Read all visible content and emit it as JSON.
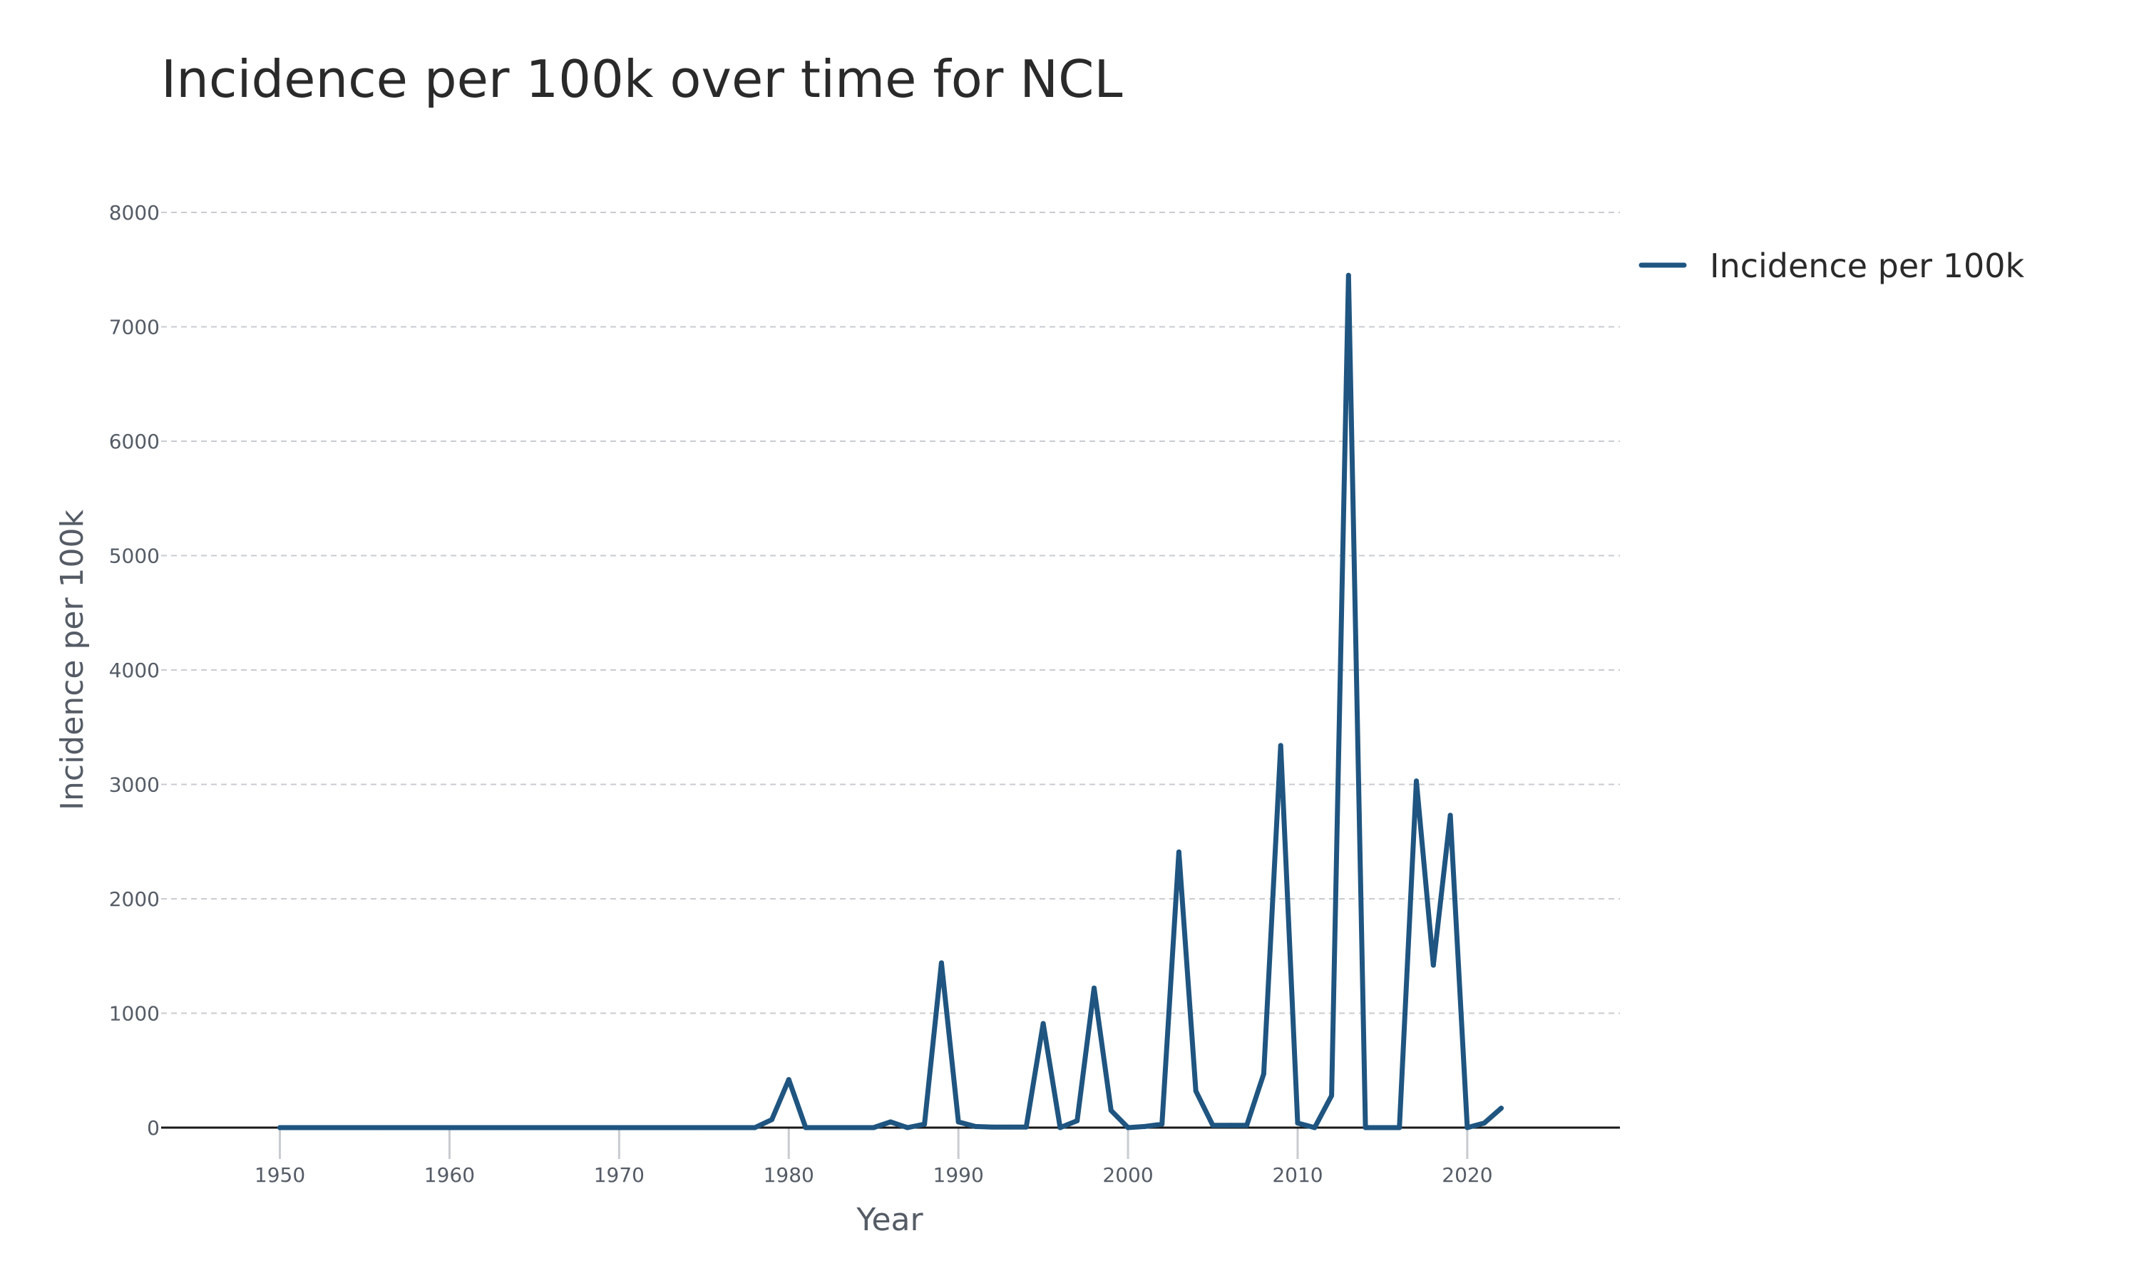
{
  "chart_data": {
    "type": "line",
    "title": "Incidence per 100k over time for NCL",
    "xlabel": "Year",
    "ylabel": "Incidence per 100k",
    "xlim": [
      1943,
      2029
    ],
    "ylim": [
      0,
      8000
    ],
    "x_ticks": [
      1950,
      1960,
      1970,
      1980,
      1990,
      2000,
      2010,
      2020
    ],
    "y_ticks": [
      0,
      1000,
      2000,
      3000,
      4000,
      5000,
      6000,
      7000,
      8000
    ],
    "grid": "horizontal dashed",
    "legend_position": "top-right outside",
    "series": [
      {
        "name": "Incidence per 100k",
        "color": "#1f5580",
        "x": [
          1950,
          1951,
          1952,
          1953,
          1954,
          1955,
          1956,
          1957,
          1958,
          1959,
          1960,
          1961,
          1962,
          1963,
          1964,
          1965,
          1966,
          1967,
          1968,
          1969,
          1970,
          1971,
          1972,
          1973,
          1974,
          1975,
          1976,
          1977,
          1978,
          1979,
          1980,
          1981,
          1982,
          1983,
          1984,
          1985,
          1986,
          1987,
          1988,
          1989,
          1990,
          1991,
          1992,
          1993,
          1994,
          1995,
          1996,
          1997,
          1998,
          1999,
          2000,
          2001,
          2002,
          2003,
          2004,
          2005,
          2006,
          2007,
          2008,
          2009,
          2010,
          2011,
          2012,
          2013,
          2014,
          2015,
          2016,
          2017,
          2018,
          2019,
          2020,
          2021,
          2022
        ],
        "y": [
          0,
          0,
          0,
          0,
          0,
          0,
          0,
          0,
          0,
          0,
          0,
          0,
          0,
          0,
          0,
          0,
          0,
          0,
          0,
          0,
          0,
          0,
          0,
          0,
          0,
          0,
          0,
          0,
          0,
          70,
          420,
          0,
          0,
          0,
          0,
          0,
          50,
          0,
          30,
          1440,
          50,
          10,
          5,
          5,
          5,
          910,
          0,
          60,
          1220,
          150,
          0,
          10,
          30,
          2410,
          320,
          20,
          20,
          20,
          470,
          3340,
          40,
          0,
          280,
          7450,
          0,
          0,
          0,
          3030,
          1420,
          2730,
          0,
          40,
          170
        ]
      }
    ]
  }
}
